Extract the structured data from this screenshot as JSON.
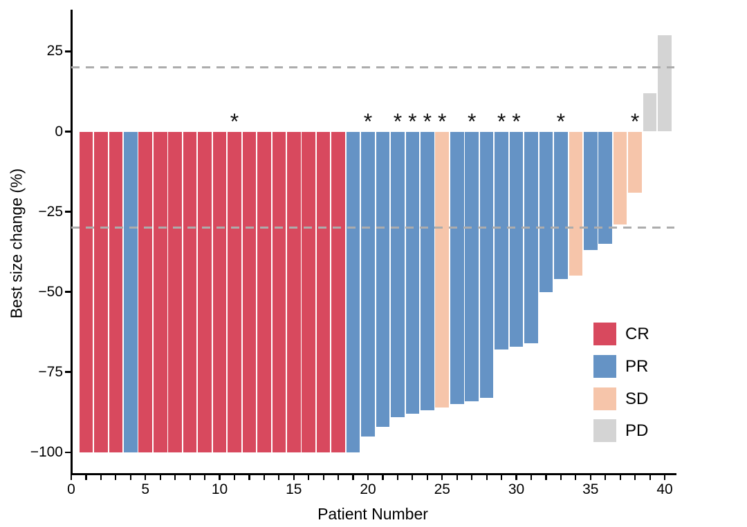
{
  "chart_data": {
    "type": "bar",
    "subtype": "waterfall",
    "title": "",
    "xlabel": "Patient Number",
    "ylabel": "Best size change (%)",
    "x_ticks": [
      0,
      5,
      10,
      15,
      20,
      25,
      30,
      35,
      40
    ],
    "x_minor_tick_every": 1,
    "xlim": [
      0,
      40.65
    ],
    "ylim": [
      -106.5,
      37.8
    ],
    "y_ticks": [
      {
        "value": 25,
        "label": "25"
      },
      {
        "value": 0,
        "label": "0"
      },
      {
        "value": -25,
        "label": "−25"
      },
      {
        "value": -50,
        "label": "−50"
      },
      {
        "value": -75,
        "label": "−75"
      },
      {
        "value": -100,
        "label": "−100"
      }
    ],
    "grid": false,
    "thresholds": [
      20,
      -30
    ],
    "star_glyph": "*",
    "legend_position": "inside-bottom-right",
    "legend": [
      {
        "label": "CR",
        "color": "#D8495E"
      },
      {
        "label": "PR",
        "color": "#6593C5"
      },
      {
        "label": "SD",
        "color": "#F6C5AA"
      },
      {
        "label": "PD",
        "color": "#D4D4D4"
      }
    ],
    "colors": {
      "CR": "#D8495E",
      "PR": "#6593C5",
      "SD": "#F6C5AA",
      "PD": "#D4D4D4",
      "threshold_line": "#ACACAC",
      "axis": "#000000"
    },
    "patients": [
      {
        "id": 1,
        "value": -100,
        "response": "CR",
        "star": false
      },
      {
        "id": 2,
        "value": -100,
        "response": "CR",
        "star": false
      },
      {
        "id": 3,
        "value": -100,
        "response": "CR",
        "star": false
      },
      {
        "id": 4,
        "value": -100,
        "response": "PR",
        "star": false
      },
      {
        "id": 5,
        "value": -100,
        "response": "CR",
        "star": false
      },
      {
        "id": 6,
        "value": -100,
        "response": "CR",
        "star": false
      },
      {
        "id": 7,
        "value": -100,
        "response": "CR",
        "star": false
      },
      {
        "id": 8,
        "value": -100,
        "response": "CR",
        "star": false
      },
      {
        "id": 9,
        "value": -100,
        "response": "CR",
        "star": false
      },
      {
        "id": 10,
        "value": -100,
        "response": "CR",
        "star": false
      },
      {
        "id": 11,
        "value": -100,
        "response": "CR",
        "star": true
      },
      {
        "id": 12,
        "value": -100,
        "response": "CR",
        "star": false
      },
      {
        "id": 13,
        "value": -100,
        "response": "CR",
        "star": false
      },
      {
        "id": 14,
        "value": -100,
        "response": "CR",
        "star": false
      },
      {
        "id": 15,
        "value": -100,
        "response": "CR",
        "star": false
      },
      {
        "id": 16,
        "value": -100,
        "response": "CR",
        "star": false
      },
      {
        "id": 17,
        "value": -100,
        "response": "CR",
        "star": false
      },
      {
        "id": 18,
        "value": -100,
        "response": "CR",
        "star": false
      },
      {
        "id": 19,
        "value": -100,
        "response": "PR",
        "star": false
      },
      {
        "id": 20,
        "value": -95,
        "response": "PR",
        "star": true
      },
      {
        "id": 21,
        "value": -92,
        "response": "PR",
        "star": false
      },
      {
        "id": 22,
        "value": -89,
        "response": "PR",
        "star": true
      },
      {
        "id": 23,
        "value": -88,
        "response": "PR",
        "star": true
      },
      {
        "id": 24,
        "value": -87,
        "response": "PR",
        "star": true
      },
      {
        "id": 25,
        "value": -86,
        "response": "SD",
        "star": true
      },
      {
        "id": 26,
        "value": -85,
        "response": "PR",
        "star": false
      },
      {
        "id": 27,
        "value": -84,
        "response": "PR",
        "star": true
      },
      {
        "id": 28,
        "value": -83,
        "response": "PR",
        "star": false
      },
      {
        "id": 29,
        "value": -68,
        "response": "PR",
        "star": true
      },
      {
        "id": 30,
        "value": -67,
        "response": "PR",
        "star": true
      },
      {
        "id": 31,
        "value": -66,
        "response": "PR",
        "star": false
      },
      {
        "id": 32,
        "value": -50,
        "response": "PR",
        "star": false
      },
      {
        "id": 33,
        "value": -46,
        "response": "PR",
        "star": true
      },
      {
        "id": 34,
        "value": -45,
        "response": "SD",
        "star": false
      },
      {
        "id": 35,
        "value": -37,
        "response": "PR",
        "star": false
      },
      {
        "id": 36,
        "value": -35,
        "response": "PR",
        "star": false
      },
      {
        "id": 37,
        "value": -29,
        "response": "SD",
        "star": false
      },
      {
        "id": 38,
        "value": -19,
        "response": "SD",
        "star": true
      },
      {
        "id": 39,
        "value": 12,
        "response": "PD",
        "star": false
      },
      {
        "id": 40,
        "value": 30,
        "response": "PD",
        "star": false
      }
    ]
  }
}
